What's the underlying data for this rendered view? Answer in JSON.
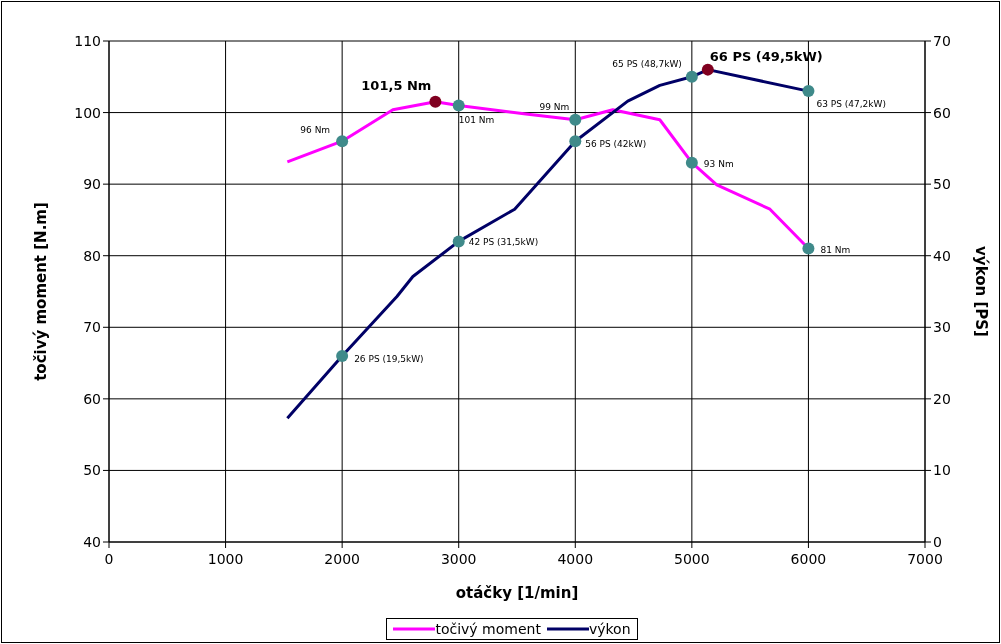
{
  "chart_data": {
    "type": "line",
    "xlabel": "otáčky [1/min]",
    "ylabel": "točivý moment [N.m]",
    "y2label": "výkon [PS]",
    "xlim": [
      0,
      7000
    ],
    "xticks": [
      0,
      1000,
      2000,
      3000,
      4000,
      5000,
      6000,
      7000
    ],
    "ylim": [
      40,
      110
    ],
    "yticks": [
      40,
      50,
      60,
      70,
      80,
      90,
      100,
      110
    ],
    "y2lim": [
      0,
      70
    ],
    "y2ticks": [
      0,
      10,
      20,
      30,
      40,
      50,
      60,
      70
    ],
    "grid": true,
    "legend": "bottom",
    "series": [
      {
        "name": "točivý moment",
        "color": "#ff00ff",
        "marker": "none",
        "x": [
          1530,
          2000,
          2435,
          2800,
          3000,
          3576,
          4000,
          4322,
          4725,
          5000,
          5214,
          5670,
          6000
        ],
        "values": [
          93.1,
          96,
          100.4,
          101.5,
          101,
          99.8,
          99,
          100.4,
          99,
          93,
          89.9,
          86.5,
          81
        ]
      },
      {
        "name": "výkon",
        "color": "#000066",
        "marker": "none",
        "axis": "y2",
        "x": [
          1530,
          2000,
          2470,
          2607,
          3000,
          3480,
          4000,
          4450,
          4725,
          5000,
          5137,
          6000
        ],
        "values": [
          17.3,
          26,
          34.3,
          37.1,
          42,
          46.5,
          56,
          61.6,
          63.8,
          65,
          66,
          63
        ]
      },
      {
        "type": "scatter",
        "color": "#3f8a8a",
        "marker": "circle",
        "x": [
          2000,
          3000,
          4000,
          5000,
          6000
        ],
        "values": [
          96,
          101,
          99,
          93,
          81
        ],
        "value_labels": [
          "96 Nm",
          "101 Nm",
          "99 Nm",
          "93 Nm",
          "81 Nm"
        ]
      },
      {
        "type": "scatter",
        "color": "#3f8a8a",
        "marker": "circle",
        "axis": "y2",
        "x": [
          2000,
          3000,
          4000,
          5000,
          6000
        ],
        "values": [
          26,
          42,
          56,
          65,
          63
        ],
        "value_labels": [
          "26 PS (19,5kW)",
          "42 PS (31,5kW)",
          "56 PS (42kW)",
          "65 PS (48,7kW)",
          "63 PS (47,2kW)"
        ]
      },
      {
        "type": "scatter",
        "color": "#800020",
        "marker": "circle",
        "x": [
          2800
        ],
        "values": [
          101.5
        ],
        "value_labels": [
          "101,5 Nm"
        ]
      },
      {
        "type": "scatter",
        "color": "#800020",
        "marker": "circle",
        "axis": "y2",
        "x": [
          5137
        ],
        "values": [
          66
        ],
        "value_labels": [
          "66 PS (49,5kW)"
        ]
      }
    ]
  }
}
